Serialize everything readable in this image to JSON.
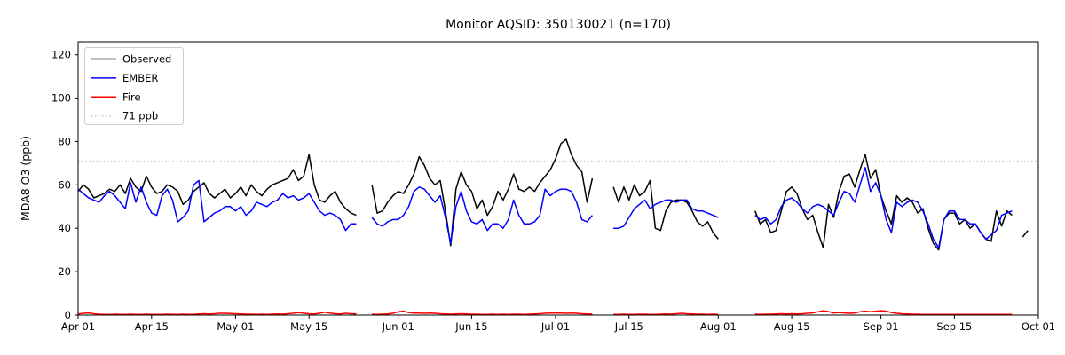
{
  "figure": {
    "background": "#ffffff"
  },
  "chart_data": {
    "type": "line",
    "title": "Monitor AQSID: 350130021 (n=170)",
    "ylabel": "MDA8 O3 (ppb)",
    "xlabel": "",
    "ylim": [
      0,
      126
    ],
    "yticks": [
      0,
      20,
      40,
      60,
      80,
      100,
      120
    ],
    "n_days": 183,
    "x_start": "Apr 01",
    "x_end": "Oct 01",
    "grid": "off",
    "legend_position": "upper left",
    "xtick_days": [
      0,
      14,
      30,
      44,
      61,
      75,
      91,
      105,
      122,
      136,
      153,
      167,
      183
    ],
    "xtick_labels": [
      "Apr 01",
      "Apr 15",
      "May 01",
      "May 15",
      "Jun 01",
      "Jun 15",
      "Jul 01",
      "Jul 15",
      "Aug 01",
      "Aug 15",
      "Sep 01",
      "Sep 15",
      "Oct 01"
    ],
    "threshold": {
      "label": "71 ppb",
      "value": 71,
      "color": "#cccccc",
      "style": "dotted"
    },
    "legend_entries": [
      {
        "label": "Observed",
        "color": "#000000",
        "style": "solid"
      },
      {
        "label": "EMBER",
        "color": "#0000ff",
        "style": "solid"
      },
      {
        "label": "Fire",
        "color": "#ff0000",
        "style": "solid"
      },
      {
        "label": "71 ppb",
        "color": "#cccccc",
        "style": "dotted"
      }
    ],
    "series": [
      {
        "name": "Observed",
        "color": "#000000",
        "values": [
          57,
          60,
          58,
          54,
          55,
          56,
          58,
          57,
          60,
          56,
          63,
          59,
          57,
          64,
          59,
          56,
          57,
          60,
          59,
          57,
          51,
          53,
          57,
          59,
          61,
          56,
          54,
          56,
          58,
          54,
          56,
          59,
          55,
          60,
          57,
          55,
          58,
          60,
          61,
          62,
          63,
          67,
          62,
          64,
          74,
          60,
          53,
          52,
          55,
          57,
          52,
          49,
          47,
          46,
          null,
          null,
          60,
          47,
          48,
          52,
          55,
          57,
          56,
          60,
          65,
          73,
          69,
          63,
          60,
          62,
          48,
          32,
          58,
          66,
          60,
          57,
          49,
          53,
          46,
          50,
          57,
          53,
          58,
          65,
          58,
          57,
          59,
          57,
          61,
          64,
          67,
          72,
          79,
          81,
          74,
          69,
          66,
          52,
          63,
          null,
          null,
          null,
          59,
          52,
          59,
          53,
          60,
          55,
          57,
          62,
          40,
          39,
          48,
          52,
          53,
          53,
          52,
          48,
          43,
          41,
          43,
          38,
          35,
          null,
          null,
          null,
          null,
          null,
          null,
          48,
          42,
          44,
          38,
          39,
          48,
          57,
          59,
          56,
          49,
          44,
          46,
          38,
          31,
          51,
          45,
          57,
          64,
          65,
          59,
          67,
          74,
          63,
          67,
          55,
          48,
          42,
          55,
          52,
          54,
          52,
          47,
          49,
          40,
          33,
          30,
          44,
          47,
          47,
          42,
          44,
          40,
          42,
          38,
          35,
          34,
          48,
          41,
          48,
          46,
          null,
          36,
          39,
          null
        ]
      },
      {
        "name": "EMBER",
        "color": "#0000ff",
        "values": [
          58,
          56,
          54,
          53,
          52,
          55,
          57,
          55,
          52,
          49,
          61,
          52,
          59,
          52,
          47,
          46,
          55,
          58,
          53,
          43,
          45,
          48,
          60,
          62,
          43,
          45,
          47,
          48,
          50,
          50,
          48,
          50,
          46,
          48,
          52,
          51,
          50,
          52,
          53,
          56,
          54,
          55,
          53,
          54,
          56,
          52,
          48,
          46,
          47,
          46,
          44,
          39,
          42,
          42,
          null,
          null,
          45,
          42,
          41,
          43,
          44,
          44,
          46,
          50,
          57,
          59,
          58,
          55,
          52,
          55,
          45,
          33,
          50,
          57,
          48,
          43,
          42,
          44,
          39,
          42,
          42,
          40,
          44,
          53,
          46,
          42,
          42,
          43,
          46,
          58,
          55,
          57,
          58,
          58,
          57,
          52,
          44,
          43,
          46,
          null,
          null,
          null,
          40,
          40,
          41,
          45,
          49,
          51,
          53,
          49,
          51,
          52,
          53,
          53,
          52,
          53,
          53,
          49,
          48,
          48,
          47,
          46,
          45,
          null,
          null,
          null,
          null,
          null,
          null,
          46,
          44,
          45,
          42,
          44,
          50,
          53,
          54,
          52,
          49,
          47,
          50,
          51,
          50,
          48,
          46,
          52,
          57,
          56,
          52,
          60,
          68,
          57,
          61,
          55,
          44,
          38,
          52,
          50,
          52,
          53,
          52,
          48,
          42,
          35,
          31,
          44,
          48,
          48,
          44,
          44,
          42,
          42,
          38,
          35,
          37,
          39,
          46,
          47,
          48,
          null,
          null,
          null,
          null
        ]
      },
      {
        "name": "Fire",
        "color": "#ff0000",
        "values": [
          0.5,
          0.8,
          1,
          0.6,
          0.4,
          0.3,
          0.3,
          0.4,
          0.3,
          0.3,
          0.4,
          0.3,
          0.3,
          0.4,
          0.3,
          0.3,
          0.3,
          0.4,
          0.3,
          0.3,
          0.4,
          0.3,
          0.3,
          0.5,
          0.6,
          0.5,
          0.6,
          0.8,
          0.8,
          0.7,
          0.6,
          0.5,
          0.4,
          0.4,
          0.3,
          0.4,
          0.3,
          0.4,
          0.5,
          0.4,
          0.6,
          0.8,
          1.2,
          0.8,
          0.6,
          0.5,
          0.8,
          1.3,
          0.9,
          0.6,
          0.5,
          0.8,
          0.6,
          0.5,
          null,
          null,
          0.4,
          0.3,
          0.4,
          0.5,
          0.8,
          1.5,
          1.8,
          1.2,
          0.9,
          1,
          0.8,
          0.9,
          0.8,
          0.6,
          0.5,
          0.4,
          0.5,
          0.6,
          0.5,
          0.4,
          0.4,
          0.3,
          0.3,
          0.4,
          0.3,
          0.4,
          0.3,
          0.4,
          0.4,
          0.3,
          0.4,
          0.5,
          0.6,
          0.8,
          0.9,
          1,
          0.9,
          0.8,
          0.9,
          0.8,
          0.6,
          0.5,
          0.4,
          null,
          null,
          null,
          0.3,
          0.3,
          0.4,
          0.3,
          0.3,
          0.4,
          0.4,
          0.3,
          0.3,
          0.4,
          0.5,
          0.4,
          0.6,
          0.8,
          0.6,
          0.5,
          0.4,
          0.4,
          0.3,
          0.4,
          0.3,
          null,
          null,
          null,
          null,
          null,
          null,
          0.4,
          0.3,
          0.4,
          0.4,
          0.5,
          0.6,
          0.5,
          0.6,
          0.5,
          0.6,
          0.8,
          1,
          1.5,
          2,
          1.6,
          1,
          1.2,
          1,
          0.8,
          1,
          1.5,
          1.8,
          1.5,
          1.8,
          2,
          1.8,
          1.2,
          0.8,
          0.6,
          0.5,
          0.4,
          0.4,
          0.3,
          0.3,
          0.3,
          0.3,
          0.3,
          0.3,
          0.3,
          0.3,
          0.3,
          0.3,
          0.3,
          0.3,
          0.3,
          0.3,
          0.3,
          0.3,
          0.3,
          0.3,
          null,
          null,
          null,
          null
        ]
      }
    ]
  }
}
